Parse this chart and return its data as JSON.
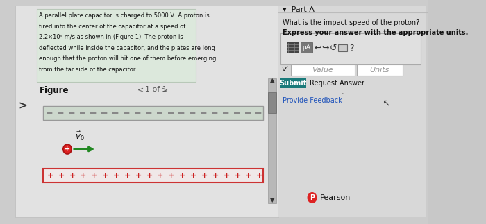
{
  "bg_color": "#c8c8c8",
  "left_panel_bg": "#d8d8d8",
  "right_panel_bg": "#d4d4d4",
  "problem_text_lines": [
    "A parallel plate capacitor is charged to 5000 V  A proton is",
    "fired into the center of the capacitor at a speed of",
    "2.2×10⁵ m/s as shown in (Figure 1). The proton is",
    "deflected while inside the capacitor, and the plates are long",
    "enough that the proton will hit one of them before emerging",
    "from the far side of the capacitor."
  ],
  "figure_label": "Figure",
  "nav_label": "1 of 1",
  "part_label": "▾  Part A",
  "question_line1": "What is the impact speed of the proton?",
  "question_line2": "Express your answer with the appropriate units.",
  "vf_label": "vⁱ =",
  "value_placeholder": "Value",
  "units_placeholder": "Units",
  "submit_text": "Submit",
  "request_answer_text": "Request Answer",
  "feedback_text": "Provide Feedback",
  "pearson_text": "Pearson",
  "arrow_color": "#228822",
  "proton_color": "#dd2222",
  "submit_bg": "#1a7a7a",
  "submit_text_color": "#ffffff",
  "prob_box_bg": "#dce8dc",
  "prob_box_edge": "#b8c8b8",
  "top_plate_bg": "#ccd8cc",
  "top_plate_edge": "#999999",
  "bot_plate_bg": "#f0e8e8",
  "bot_plate_edge": "#cc3333",
  "toolbar_border": "#aaaaaa",
  "input_bg": "#ffffff",
  "input_edge": "#aaaaaa",
  "scrollbar_bg": "#b8b8b8",
  "scrollbar_thumb": "#888888",
  "link_color": "#2255bb"
}
